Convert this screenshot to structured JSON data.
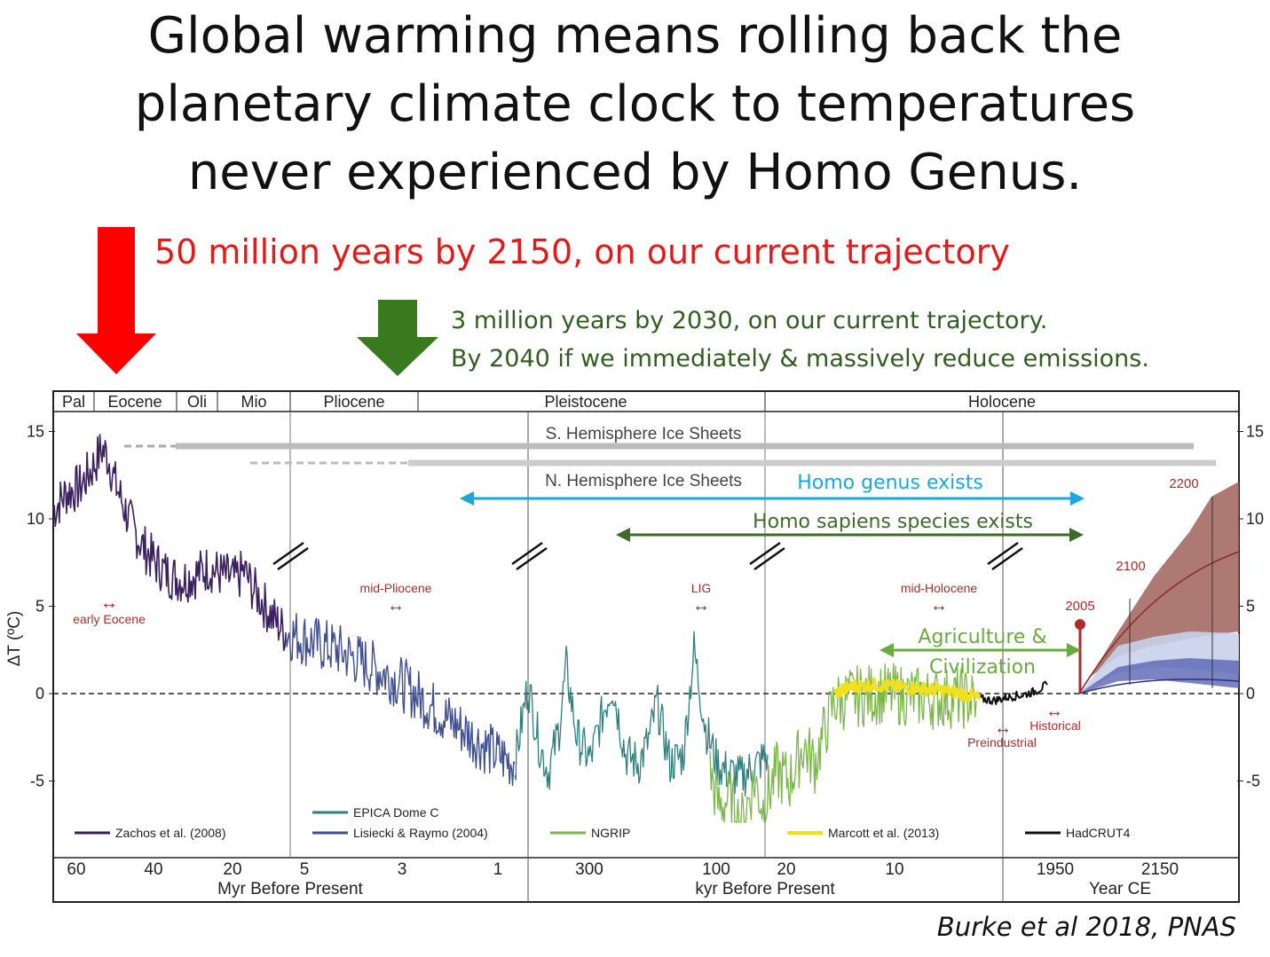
{
  "slide": {
    "title_lines": [
      "Global warming means rolling back the",
      "planetary climate clock to temperatures",
      "never experienced by Homo Genus."
    ],
    "red_callout": "50 million years by 2150, on our current trajectory",
    "green_callout_lines": [
      "3 million years by 2030, on our current trajectory.",
      "By 2040 if we immediately & massively reduce emissions."
    ],
    "citation": "Burke et al 2018, PNAS",
    "colors": {
      "red_arrow": "#ff0000",
      "green_arrow": "#3a7a1e",
      "blue_band": "#1aa7e0",
      "dark_green_band": "#3d6b2a",
      "light_green_band": "#6aab3f"
    }
  },
  "chart_data": {
    "type": "line",
    "ylabel": "ΔT (ºC)",
    "yticks": [
      "15",
      "10",
      "5",
      "0",
      "-5"
    ],
    "ylim": [
      -9.5,
      16
    ],
    "epochs": [
      {
        "label": "Pal"
      },
      {
        "label": "Eocene"
      },
      {
        "label": "Oli"
      },
      {
        "label": "Mio"
      },
      {
        "label": "Pliocene"
      },
      {
        "label": "Pleistocene"
      },
      {
        "label": "Holocene"
      }
    ],
    "ice_sheets": [
      "S. Hemisphere Ice Sheets",
      "N. Hemisphere Ice Sheets"
    ],
    "segments": [
      {
        "xlabel": "Myr Before Present",
        "ticks": [
          "60",
          "40",
          "20",
          "5"
        ]
      },
      {
        "xlabel": "",
        "ticks": [
          "3",
          "1"
        ]
      },
      {
        "xlabel": "kyr Before Present",
        "ticks": [
          "300",
          "100",
          "20",
          "10"
        ]
      },
      {
        "xlabel": "Year CE",
        "ticks": [
          "1950",
          "2150"
        ]
      }
    ],
    "bands": [
      {
        "label": "Homo genus exists",
        "color": "#1aa7e0"
      },
      {
        "label": "Homo sapiens species exists",
        "color": "#3d6b2a"
      },
      {
        "label": "Agriculture & Civilization",
        "label_lines": [
          "Agriculture &",
          "Civilization"
        ],
        "color": "#6aab3f"
      }
    ],
    "intervals": [
      {
        "label": "early Eocene"
      },
      {
        "label": "mid-Pliocene"
      },
      {
        "label": "LIG"
      },
      {
        "label": "mid-Holocene"
      },
      {
        "label": "Preindustrial"
      },
      {
        "label": "Historical"
      }
    ],
    "projection_labels": [
      "2005",
      "2100",
      "2200"
    ],
    "series": [
      {
        "name": "Zachos et al. (2008)",
        "color": "#3b1f5e",
        "points": [
          [
            0,
            10.5
          ],
          [
            15,
            11.5
          ],
          [
            30,
            11.8
          ],
          [
            45,
            13
          ],
          [
            55,
            14
          ],
          [
            62,
            13.5
          ],
          [
            70,
            12
          ],
          [
            85,
            10
          ],
          [
            100,
            8.5
          ],
          [
            115,
            7.5
          ],
          [
            130,
            6.8
          ],
          [
            145,
            6.5
          ],
          [
            160,
            6.8
          ],
          [
            175,
            7.2
          ],
          [
            190,
            6.8
          ],
          [
            205,
            6.5
          ],
          [
            215,
            7.0
          ],
          [
            225,
            6.0
          ],
          [
            235,
            5.3
          ],
          [
            248,
            4.3
          ],
          [
            262,
            3.5
          ]
        ]
      },
      {
        "name": "Lisiecki & Raymo (2004)",
        "color": "#3f4f8f",
        "points": [
          [
            262,
            3.5
          ],
          [
            280,
            3.2
          ],
          [
            300,
            2.8
          ],
          [
            320,
            2.5
          ],
          [
            340,
            2.0
          ],
          [
            360,
            1.5
          ],
          [
            380,
            1.0
          ],
          [
            400,
            0.3
          ],
          [
            420,
            -0.5
          ],
          [
            440,
            -1.3
          ],
          [
            460,
            -2.0
          ],
          [
            480,
            -2.8
          ],
          [
            500,
            -3.5
          ],
          [
            520,
            -4.0
          ]
        ]
      },
      {
        "name": "EPICA Dome C",
        "color": "#2f7f7f",
        "points": [
          [
            520,
            -4.0
          ],
          [
            535,
            0.5
          ],
          [
            548,
            -3.0
          ],
          [
            558,
            -4.5
          ],
          [
            570,
            -2.0
          ],
          [
            578,
            1.5
          ],
          [
            590,
            -2.5
          ],
          [
            605,
            -3.8
          ],
          [
            620,
            -1.0
          ],
          [
            630,
            0.5
          ],
          [
            645,
            -3.5
          ],
          [
            660,
            -4.0
          ],
          [
            672,
            -2.5
          ],
          [
            680,
            -0.5
          ],
          [
            695,
            -4.0
          ],
          [
            710,
            -3.5
          ],
          [
            722,
            2.5
          ],
          [
            735,
            -2.0
          ],
          [
            748,
            -4.0
          ],
          [
            760,
            -4.5
          ],
          [
            775,
            -4.8
          ],
          [
            790,
            -4.2
          ],
          [
            805,
            -3.5
          ]
        ]
      },
      {
        "name": "NGRIP",
        "color": "#7ab648",
        "points": [
          [
            740,
            -4.5
          ],
          [
            750,
            -6.5
          ],
          [
            762,
            -6.0
          ],
          [
            775,
            -7.5
          ],
          [
            790,
            -5.0
          ],
          [
            800,
            -6.5
          ],
          [
            815,
            -4.5
          ],
          [
            830,
            -5.0
          ],
          [
            845,
            -3.0
          ],
          [
            858,
            -4.0
          ],
          [
            870,
            -2.0
          ],
          [
            880,
            -0.5
          ],
          [
            900,
            -0.2
          ],
          [
            930,
            0.0
          ],
          [
            960,
            -0.1
          ],
          [
            990,
            -0.3
          ],
          [
            1020,
            -0.2
          ],
          [
            1040,
            -0.4
          ]
        ]
      },
      {
        "name": "Marcott et al. (2013)",
        "color": "#f0e020",
        "points": [
          [
            880,
            0.0
          ],
          [
            900,
            0.4
          ],
          [
            925,
            0.5
          ],
          [
            950,
            0.4
          ],
          [
            975,
            0.3
          ],
          [
            1000,
            0.2
          ],
          [
            1025,
            0.0
          ],
          [
            1045,
            -0.3
          ]
        ]
      },
      {
        "name": "HadCRUT4",
        "color": "#111111",
        "points": [
          [
            1045,
            -0.3
          ],
          [
            1060,
            -0.4
          ],
          [
            1075,
            -0.2
          ],
          [
            1090,
            -0.1
          ],
          [
            1105,
            0.1
          ],
          [
            1120,
            0.5
          ]
        ]
      }
    ]
  }
}
